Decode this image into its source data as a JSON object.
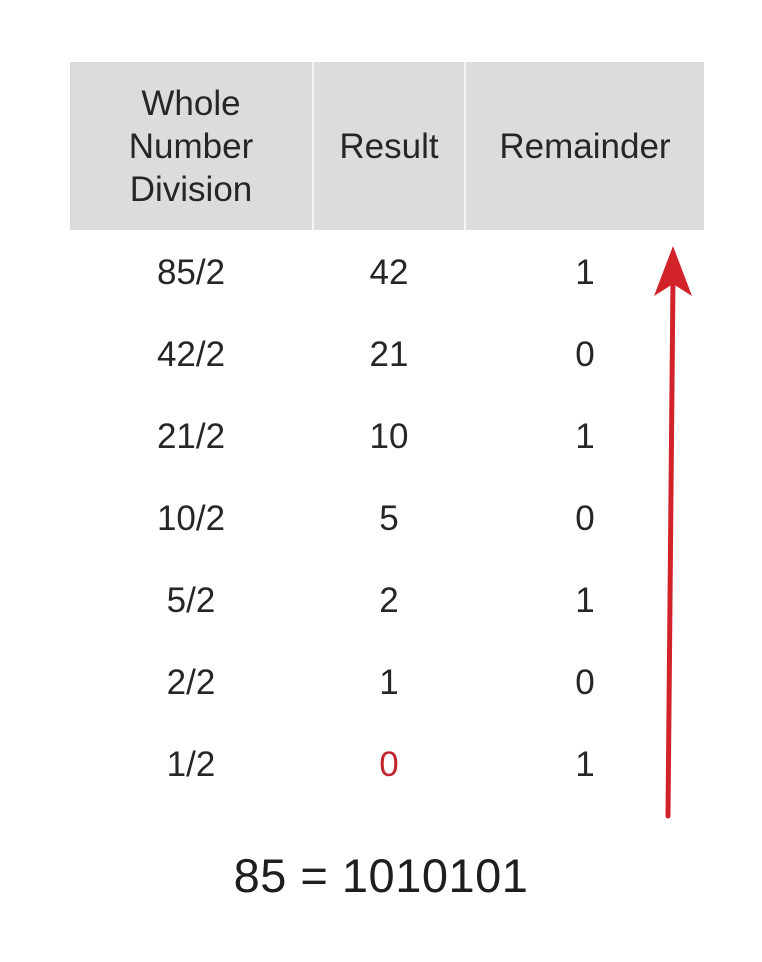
{
  "table": {
    "headers": {
      "col1": [
        "Whole",
        "Number",
        "Division"
      ],
      "col2": "Result",
      "col3": "Remainder"
    },
    "rows": [
      {
        "division": "85/2",
        "result": "42",
        "remainder": "1"
      },
      {
        "division": "42/2",
        "result": "21",
        "remainder": "0"
      },
      {
        "division": "21/2",
        "result": "10",
        "remainder": "1"
      },
      {
        "division": "10/2",
        "result": "5",
        "remainder": "0"
      },
      {
        "division": "5/2",
        "result": "2",
        "remainder": "1"
      },
      {
        "division": "2/2",
        "result": "1",
        "remainder": "0"
      },
      {
        "division": "1/2",
        "result": "0",
        "remainder": "1"
      }
    ],
    "highlight_color": "#c0262c",
    "header_background": "#dcdcdc"
  },
  "arrow": {
    "direction": "up",
    "icon": "arrow-up-icon",
    "color": "#d2232a"
  },
  "equation": "85 = 1010101"
}
